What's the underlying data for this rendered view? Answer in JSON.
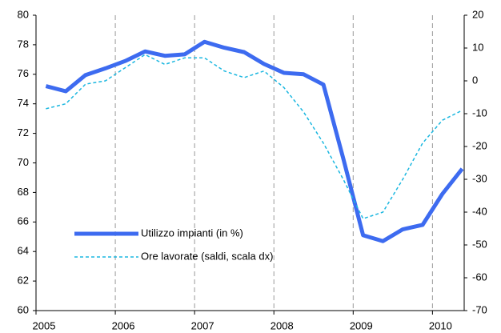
{
  "chart_data": {
    "type": "line",
    "x": [
      2005.125,
      2005.375,
      2005.625,
      2005.875,
      2006.125,
      2006.375,
      2006.625,
      2006.875,
      2007.125,
      2007.375,
      2007.625,
      2007.875,
      2008.125,
      2008.375,
      2008.625,
      2008.875,
      2009.125,
      2009.375,
      2009.625,
      2009.875,
      2010.125,
      2010.375
    ],
    "series": [
      {
        "name": "Utilizzo impianti (in %)",
        "color": "#3d6bf0",
        "values": [
          75.2,
          74.85,
          75.95,
          76.4,
          76.9,
          77.55,
          77.25,
          77.35,
          78.2,
          77.8,
          77.5,
          76.7,
          76.1,
          76.0,
          75.3,
          70.3,
          65.1,
          64.7,
          65.5,
          65.8,
          67.9,
          69.6
        ]
      },
      {
        "name": "Ore lavorate (saldi, scala dx)",
        "color": "#1bb7e0",
        "axis": "y2",
        "values": [
          -8.5,
          -7,
          -1,
          0,
          4,
          8,
          5,
          7,
          7,
          3,
          1,
          3,
          -2,
          -9.5,
          -19,
          -30,
          -42,
          -40,
          -30,
          -19,
          -12,
          -9
        ]
      }
    ],
    "xlim": [
      2005,
      2010.4
    ],
    "xticks": [
      2005,
      2006,
      2007,
      2008,
      2009,
      2010
    ],
    "ylim": [
      60,
      80
    ],
    "yticks": [
      60,
      62,
      64,
      66,
      68,
      70,
      72,
      74,
      76,
      78,
      80
    ],
    "y2lim": [
      -70,
      20
    ],
    "y2ticks": [
      -70,
      -60,
      -50,
      -40,
      -30,
      -20,
      -10,
      0,
      10,
      20
    ],
    "grid": "x",
    "legend": "lower left"
  }
}
